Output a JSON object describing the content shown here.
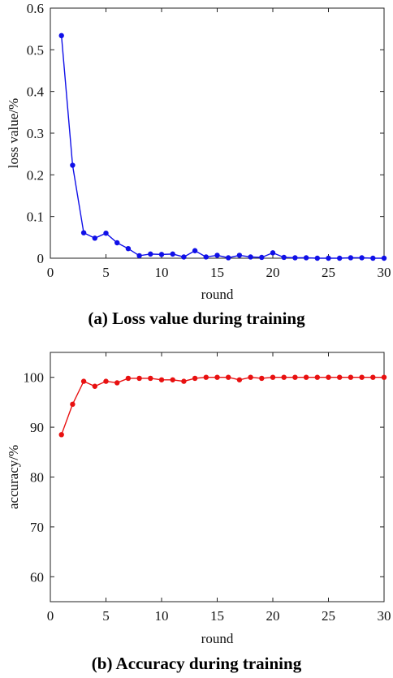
{
  "chart_data": [
    {
      "type": "line",
      "caption": "(a) Loss value during training",
      "xlabel": "round",
      "ylabel": "loss value/%",
      "xlim": [
        0,
        30
      ],
      "ylim": [
        0,
        0.6
      ],
      "x_ticks": [
        0,
        5,
        10,
        15,
        20,
        25,
        30
      ],
      "x_tick_labels": [
        "0",
        "5",
        "10",
        "15",
        "20",
        "25",
        "30"
      ],
      "y_ticks": [
        0,
        0.1,
        0.2,
        0.3,
        0.4,
        0.5,
        0.6
      ],
      "y_tick_labels": [
        "0",
        "0.1",
        "0.2",
        "0.3",
        "0.4",
        "0.5",
        "0.6"
      ],
      "grid": false,
      "color": "#1010e8",
      "series": [
        {
          "x": [
            1,
            2,
            3,
            4,
            5,
            6,
            7,
            8,
            9,
            10,
            11,
            12,
            13,
            14,
            15,
            16,
            17,
            18,
            19,
            20,
            21,
            22,
            23,
            24,
            25,
            26,
            27,
            28,
            29,
            30
          ],
          "values": [
            0.534,
            0.223,
            0.061,
            0.048,
            0.06,
            0.037,
            0.023,
            0.006,
            0.01,
            0.009,
            0.01,
            0.003,
            0.018,
            0.003,
            0.007,
            0.001,
            0.007,
            0.003,
            0.002,
            0.013,
            0.002,
            0.001,
            0.001,
            0.0,
            0.0,
            0.0,
            0.001,
            0.001,
            0.0,
            0.0
          ]
        }
      ]
    },
    {
      "type": "line",
      "caption": "(b) Accuracy during training",
      "xlabel": "round",
      "ylabel": "accuracy/%",
      "xlim": [
        0,
        30
      ],
      "ylim": [
        55,
        105
      ],
      "x_ticks": [
        0,
        5,
        10,
        15,
        20,
        25,
        30
      ],
      "x_tick_labels": [
        "0",
        "5",
        "10",
        "15",
        "20",
        "25",
        "30"
      ],
      "y_ticks": [
        60,
        70,
        80,
        90,
        100
      ],
      "y_tick_labels": [
        "60",
        "70",
        "80",
        "90",
        "100"
      ],
      "grid": false,
      "color": "#e81010",
      "series": [
        {
          "x": [
            1,
            2,
            3,
            4,
            5,
            6,
            7,
            8,
            9,
            10,
            11,
            12,
            13,
            14,
            15,
            16,
            17,
            18,
            19,
            20,
            21,
            22,
            23,
            24,
            25,
            26,
            27,
            28,
            29,
            30
          ],
          "values": [
            88.5,
            94.6,
            99.2,
            98.2,
            99.2,
            98.9,
            99.8,
            99.8,
            99.8,
            99.5,
            99.5,
            99.2,
            99.8,
            100,
            100,
            100,
            99.5,
            100,
            99.8,
            100,
            100,
            100,
            100,
            100,
            100,
            100,
            100,
            100,
            100,
            100
          ]
        }
      ]
    }
  ]
}
